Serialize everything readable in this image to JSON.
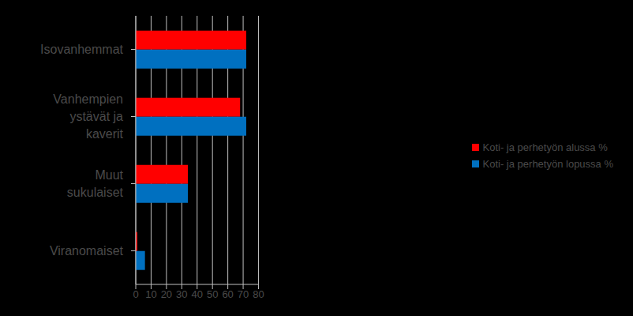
{
  "chart_data": {
    "type": "bar",
    "orientation": "horizontal",
    "categories": [
      "Isovanhemmat",
      "Vanhempien ystävät ja kaverit",
      "Muut sukulaiset",
      "Viranomaiset"
    ],
    "series": [
      {
        "name": "Koti- ja perhetyön alussa %",
        "color": "#ff0000",
        "values": [
          72,
          68,
          34,
          1
        ]
      },
      {
        "name": "Koti- ja perhetyön lopussa %",
        "color": "#0070c0",
        "values": [
          72,
          72,
          34,
          6
        ]
      }
    ],
    "xlim": [
      0,
      80
    ],
    "xticks": [
      0,
      10,
      20,
      30,
      40,
      50,
      60,
      70,
      80
    ],
    "grid": true,
    "legend": "right"
  }
}
